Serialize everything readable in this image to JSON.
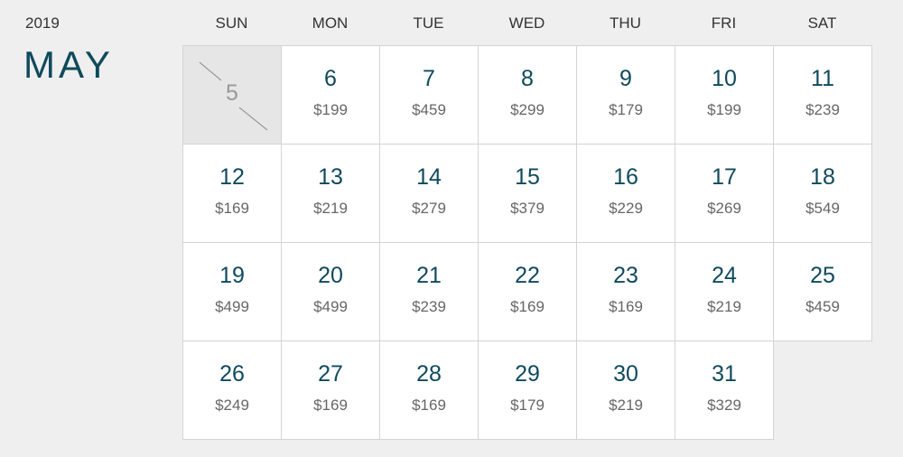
{
  "year": "2019",
  "month": "MAY",
  "colors": {
    "accent": "#0f4a5c",
    "background": "#efefef",
    "price": "#666666",
    "past": "#e6e6e6"
  },
  "weekdays": [
    "SUN",
    "MON",
    "TUE",
    "WED",
    "THU",
    "FRI",
    "SAT"
  ],
  "days": [
    {
      "day": "5",
      "price": "",
      "unavailable": true
    },
    {
      "day": "6",
      "price": "$199"
    },
    {
      "day": "7",
      "price": "$459"
    },
    {
      "day": "8",
      "price": "$299"
    },
    {
      "day": "9",
      "price": "$179"
    },
    {
      "day": "10",
      "price": "$199"
    },
    {
      "day": "11",
      "price": "$239"
    },
    {
      "day": "12",
      "price": "$169"
    },
    {
      "day": "13",
      "price": "$219"
    },
    {
      "day": "14",
      "price": "$279"
    },
    {
      "day": "15",
      "price": "$379"
    },
    {
      "day": "16",
      "price": "$229"
    },
    {
      "day": "17",
      "price": "$269"
    },
    {
      "day": "18",
      "price": "$549"
    },
    {
      "day": "19",
      "price": "$499"
    },
    {
      "day": "20",
      "price": "$499"
    },
    {
      "day": "21",
      "price": "$239"
    },
    {
      "day": "22",
      "price": "$169"
    },
    {
      "day": "23",
      "price": "$169"
    },
    {
      "day": "24",
      "price": "$219"
    },
    {
      "day": "25",
      "price": "$459"
    },
    {
      "day": "26",
      "price": "$249"
    },
    {
      "day": "27",
      "price": "$169"
    },
    {
      "day": "28",
      "price": "$169"
    },
    {
      "day": "29",
      "price": "$179"
    },
    {
      "day": "30",
      "price": "$219"
    },
    {
      "day": "31",
      "price": "$329"
    }
  ]
}
